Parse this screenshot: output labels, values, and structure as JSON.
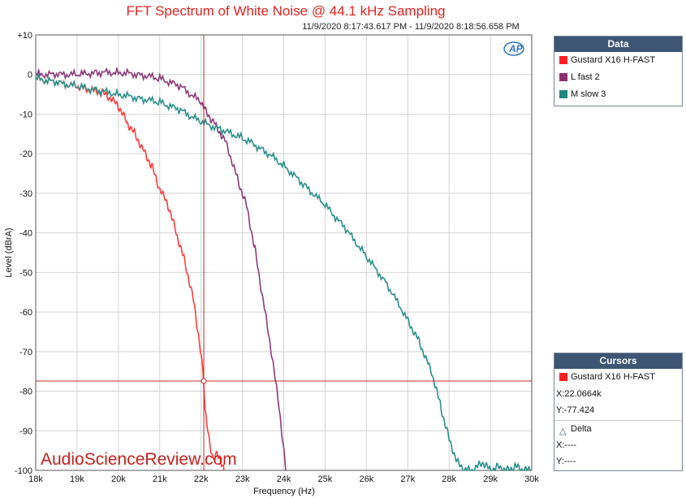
{
  "chart_data": {
    "type": "line",
    "title": "FFT Spectrum of White Noise @ 44.1 kHz Sampling",
    "subtitle": "11/9/2020 8:17:43.617 PM - 11/9/2020 8:18:56.658 PM",
    "xlabel": "Frequency (Hz)",
    "ylabel": "Level (dBrA)",
    "xlim": [
      18000,
      30000
    ],
    "ylim": [
      -100,
      10
    ],
    "x_ticks": [
      18000,
      19000,
      20000,
      21000,
      22000,
      23000,
      24000,
      25000,
      26000,
      27000,
      28000,
      29000,
      30000
    ],
    "x_tick_labels": [
      "18k",
      "19k",
      "20k",
      "21k",
      "22k",
      "23k",
      "24k",
      "25k",
      "26k",
      "27k",
      "28k",
      "29k",
      "30k"
    ],
    "y_ticks": [
      10,
      0,
      -10,
      -20,
      -30,
      -40,
      -50,
      -60,
      -70,
      -80,
      -90,
      -100
    ],
    "y_tick_labels": [
      "+10",
      "0",
      "-10",
      "-20",
      "-30",
      "-40",
      "-50",
      "-60",
      "-70",
      "-80",
      "-90",
      "-100"
    ],
    "grid": true,
    "legend_position": "right",
    "series": [
      {
        "name": "Gustard X16 H-FAST",
        "color": "#ff3b3b",
        "x": [
          18000,
          18500,
          19000,
          19300,
          19600,
          19800,
          20000,
          20200,
          20400,
          20600,
          20800,
          21000,
          21200,
          21400,
          21600,
          21800,
          21900,
          22000,
          22066,
          22100,
          22200,
          22300,
          22400,
          22500,
          22550
        ],
        "y": [
          -1,
          -2,
          -3,
          -4,
          -4.5,
          -6,
          -8,
          -12,
          -15,
          -19,
          -23,
          -29,
          -33,
          -40,
          -47,
          -56,
          -63,
          -71,
          -77.4,
          -85,
          -93,
          -97,
          -96,
          -98,
          -100
        ]
      },
      {
        "name": "L fast 2",
        "color": "#8e3a7a",
        "x": [
          18000,
          18500,
          19000,
          19500,
          20000,
          20500,
          21000,
          21500,
          22000,
          22100,
          22300,
          22600,
          22900,
          23100,
          23300,
          23500,
          23700,
          23900,
          24050
        ],
        "y": [
          0,
          0,
          0,
          0.5,
          0.5,
          0,
          -1,
          -3,
          -7,
          -9,
          -12,
          -17,
          -27,
          -33,
          -44,
          -57,
          -70,
          -85,
          -100
        ]
      },
      {
        "name": "M slow 3",
        "color": "#2a8f8a",
        "x": [
          18000,
          18500,
          19000,
          19500,
          20000,
          20500,
          21000,
          21500,
          22000,
          22500,
          23000,
          23500,
          24000,
          24500,
          25000,
          25500,
          26000,
          26500,
          27000,
          27300,
          27600,
          27800,
          28000,
          28200,
          28400,
          28600,
          28800,
          29000,
          29200,
          29400,
          29600,
          29800,
          30000
        ],
        "y": [
          -1,
          -2,
          -3,
          -4,
          -5,
          -6,
          -7,
          -9,
          -12,
          -14,
          -16,
          -19,
          -23,
          -28,
          -33,
          -39,
          -46,
          -53,
          -62,
          -68,
          -76,
          -84,
          -92,
          -98,
          -100,
          -100,
          -98,
          -100,
          -99,
          -100,
          -99,
          -100,
          -100
        ]
      }
    ],
    "cursor": {
      "x": 22066.4,
      "y": -77.424,
      "color": "#c0282a"
    },
    "watermark": "AudioScienceReview.com",
    "logo": "AP"
  },
  "data_panel": {
    "title": "Data",
    "items": [
      {
        "label": "Gustard X16 H-FAST",
        "color": "#ff2020"
      },
      {
        "label": "L fast 2",
        "color": "#8e2f6e"
      },
      {
        "label": "M slow 3",
        "color": "#23857f"
      }
    ]
  },
  "cursors_panel": {
    "title": "Cursors",
    "trace_label": "Gustard X16 H-FAST",
    "trace_color": "#ff2020",
    "x_readout": "X:22.0664k",
    "y_readout": "Y:-77.424",
    "delta_label": "Delta",
    "delta_x": "X:----",
    "delta_y": "Y:----"
  }
}
